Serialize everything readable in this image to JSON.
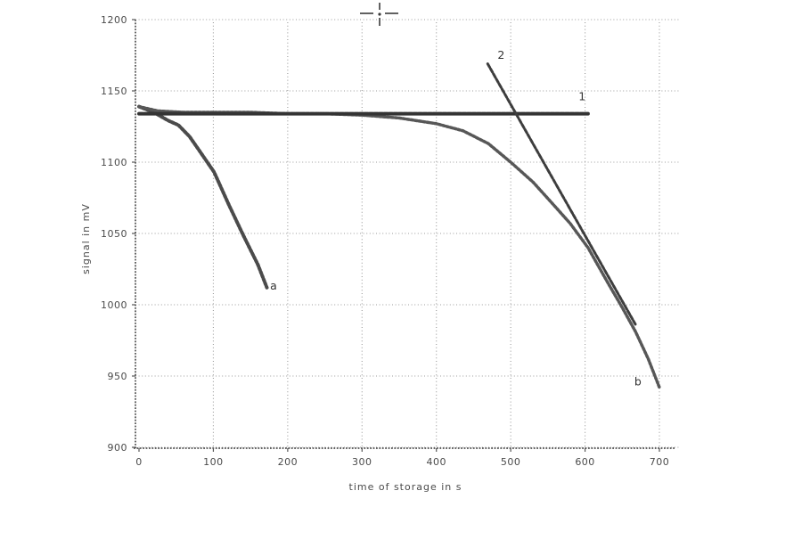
{
  "figure": {
    "background": "#ffffff",
    "ink_color": "#3a3a3a",
    "grid_color": "#9b9b9b",
    "registration_mark": "crosshair"
  },
  "chart_data": {
    "type": "line",
    "title": "",
    "xlabel": "time of storage in s",
    "ylabel": "signal in mV",
    "xlim": [
      0,
      700
    ],
    "ylim": [
      900,
      1200
    ],
    "x_ticks": [
      0,
      100,
      200,
      300,
      400,
      500,
      600,
      700
    ],
    "y_ticks": [
      900,
      950,
      1000,
      1050,
      1100,
      1150,
      1200
    ],
    "grid": true,
    "legend": "none",
    "series": [
      {
        "name": "a",
        "kind": "measured-curve",
        "x": [
          0,
          10,
          23,
          40,
          53,
          68,
          80,
          101,
          121,
          140,
          160,
          172
        ],
        "y": [
          1139,
          1137,
          1134,
          1129,
          1126,
          1118,
          1109,
          1093,
          1070,
          1049,
          1028,
          1012
        ]
      },
      {
        "name": "b",
        "kind": "measured-curve",
        "x": [
          0,
          25,
          60,
          100,
          150,
          200,
          250,
          300,
          350,
          400,
          436,
          470,
          500,
          530,
          556,
          580,
          604,
          630,
          650,
          668,
          685,
          700
        ],
        "y": [
          1139,
          1136,
          1135,
          1135,
          1135,
          1134,
          1134,
          1133,
          1131,
          1127,
          1122,
          1113,
          1100,
          1086,
          1071,
          1057,
          1040,
          1016,
          998,
          981,
          962,
          942
        ]
      },
      {
        "name": "1",
        "kind": "reference-line",
        "x": [
          0,
          604
        ],
        "y": [
          1134,
          1134
        ]
      },
      {
        "name": "2",
        "kind": "tangent-line",
        "x": [
          469,
          668
        ],
        "y": [
          1169,
          986
        ]
      }
    ],
    "annotations": [
      {
        "text": "a",
        "x": 181,
        "y": 1013
      },
      {
        "text": "b",
        "x": 671,
        "y": 946
      },
      {
        "text": "1",
        "x": 596,
        "y": 1146
      },
      {
        "text": "2",
        "x": 487,
        "y": 1175
      }
    ]
  }
}
